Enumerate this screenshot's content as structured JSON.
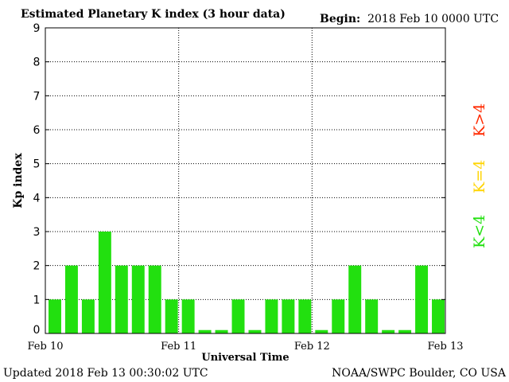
{
  "header": {
    "title": "Estimated Planetary K index (3 hour data)",
    "begin_label": "Begin:",
    "begin_value": "2018 Feb 10 0000 UTC"
  },
  "footer": {
    "updated": "Updated 2018 Feb 13 00:30:02 UTC",
    "credit": "NOAA/SWPC Boulder, CO USA"
  },
  "legend": {
    "items": [
      {
        "label": "K>4",
        "color": "#ff2a00"
      },
      {
        "label": "K=4",
        "color": "#ffd400"
      },
      {
        "label": "K<4",
        "color": "#22e00f"
      }
    ]
  },
  "chart_data": {
    "type": "bar",
    "title": "Estimated Planetary K index (3 hour data)",
    "xlabel": "Universal Time",
    "ylabel": "Kp index",
    "ylim": [
      0,
      9
    ],
    "yticks": [
      "0",
      "1",
      "2",
      "3",
      "4",
      "5",
      "6",
      "7",
      "8",
      "9"
    ],
    "xticks": [
      "Feb 10",
      "Feb 11",
      "Feb 12",
      "Feb 13"
    ],
    "grid": true,
    "bar_color": "#22e00f",
    "values": [
      1,
      2,
      1,
      3,
      2,
      2,
      2,
      1,
      1,
      0,
      0,
      1,
      0,
      1,
      1,
      1,
      0,
      1,
      2,
      1,
      0,
      0,
      2,
      1
    ]
  }
}
